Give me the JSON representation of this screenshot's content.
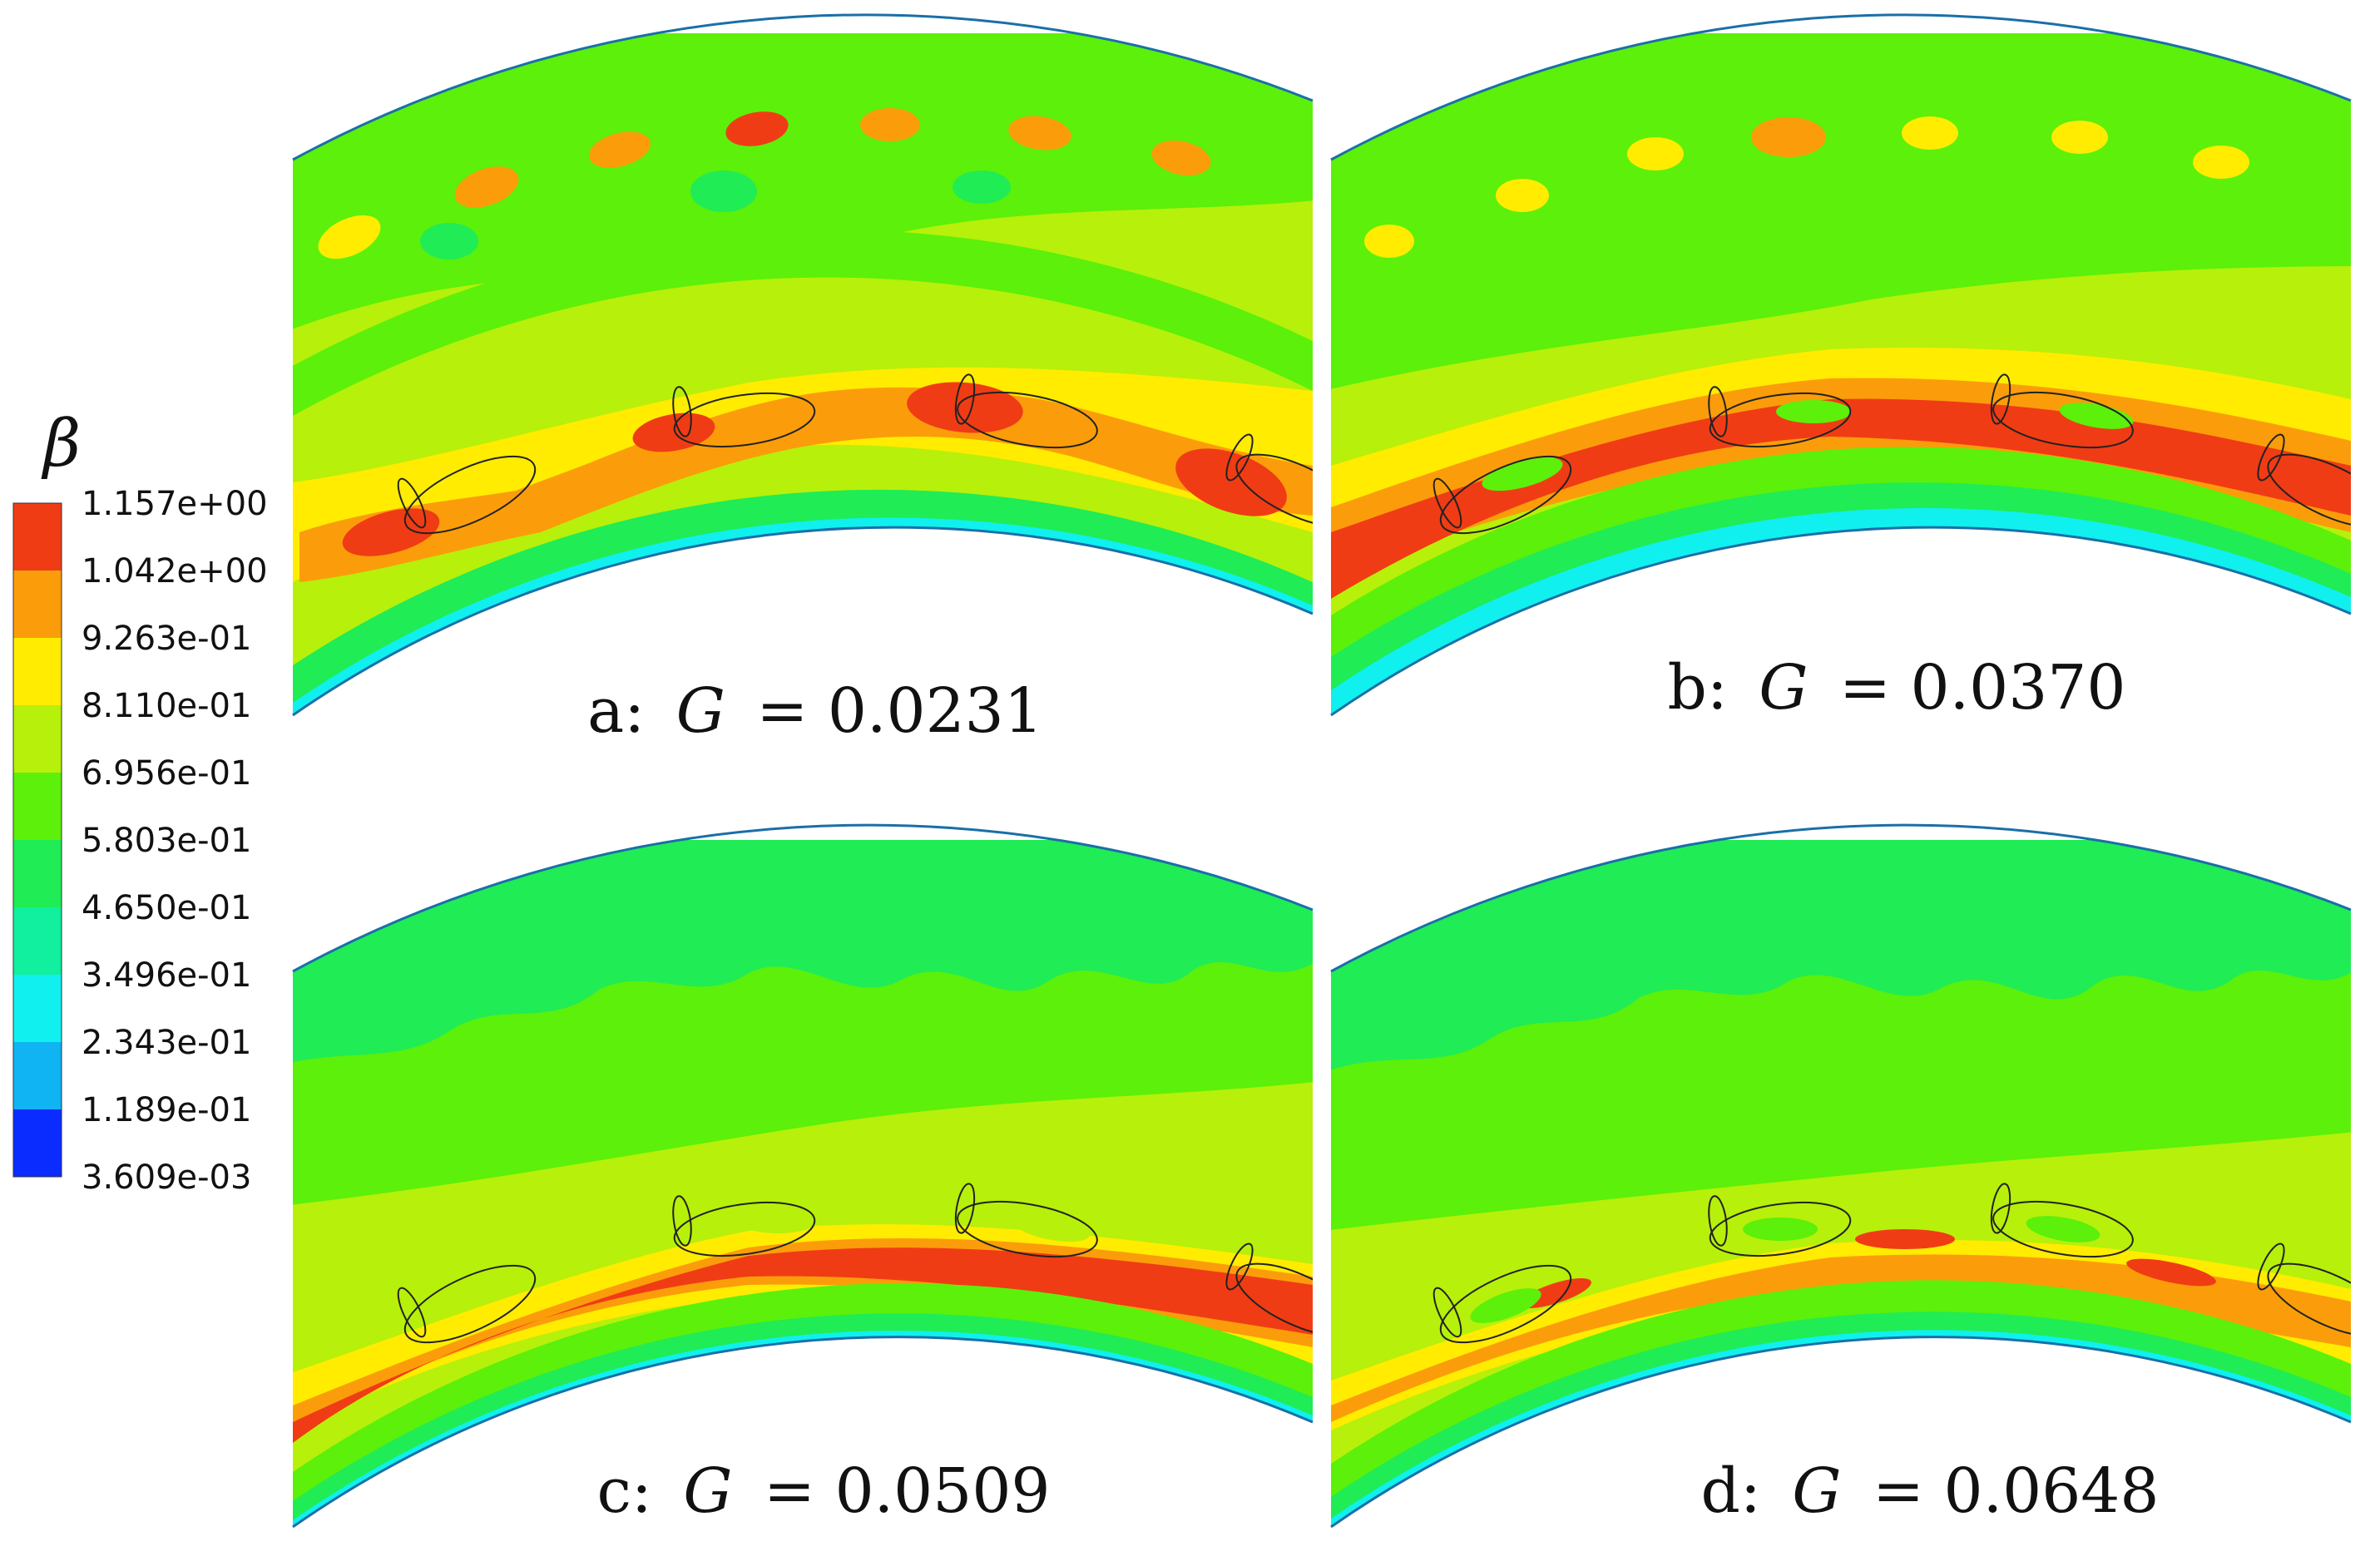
{
  "legend": {
    "symbol": "β",
    "levels": [
      {
        "label": "1.157e+00",
        "color": "#f03c14"
      },
      {
        "label": "1.042e+00",
        "color": "#fb9d0a"
      },
      {
        "label": "9.263e-01",
        "color": "#ffec00"
      },
      {
        "label": "8.110e-01",
        "color": "#b7f00a"
      },
      {
        "label": "6.956e-01",
        "color": "#5cf00a"
      },
      {
        "label": "5.803e-01",
        "color": "#20ec55"
      },
      {
        "label": "4.650e-01",
        "color": "#10f09e"
      },
      {
        "label": "3.496e-01",
        "color": "#10f0ee"
      },
      {
        "label": "2.343e-01",
        "color": "#10b4f3"
      },
      {
        "label": "1.189e-01",
        "color": "#1070f3"
      },
      {
        "label": "3.609e-03",
        "color": "#0a2cff"
      }
    ]
  },
  "panels": [
    {
      "id": "a",
      "prefix": "a:",
      "var": "G",
      "eq": "= 0.0231"
    },
    {
      "id": "b",
      "prefix": "b:",
      "var": "G",
      "eq": "= 0.0370"
    },
    {
      "id": "c",
      "prefix": "c:",
      "var": "G",
      "eq": "= 0.0509"
    },
    {
      "id": "d",
      "prefix": "d:",
      "var": "G",
      "eq": "= 0.0648"
    }
  ]
}
